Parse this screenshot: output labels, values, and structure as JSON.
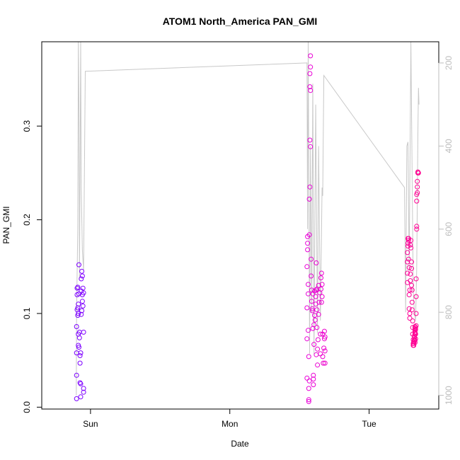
{
  "chart_data": {
    "type": "scatter",
    "title": "ATOM1 North_America PAN_GMI",
    "xlabel": "Date",
    "ylabel": "PAN_GMI",
    "x_tick_labels": [
      "Sun",
      "Mon",
      "Tue"
    ],
    "x_ticks_hours": [
      24,
      48,
      72
    ],
    "x_range_hours": [
      15.6,
      84.0
    ],
    "ylim": [
      -0.002,
      0.39
    ],
    "y_ticks": [
      0.0,
      0.1,
      0.2,
      0.3
    ],
    "y_tick_labels": [
      "0.0",
      "0.1",
      "0.2",
      "0.3"
    ],
    "right_axis": {
      "ticks": [
        200,
        400,
        600,
        800,
        1000
      ],
      "tick_labels": [
        "200",
        "400",
        "600",
        "800",
        "1000"
      ],
      "lim": [
        1033,
        149
      ],
      "color": "#bdbdbd"
    },
    "grid": false,
    "legend": "none",
    "colors": {
      "start": "#7b00ff",
      "middle": "#dc00ff",
      "end": "#ff0090",
      "profile_line": "#c8c8c8"
    },
    "series": [
      {
        "points": [
          [
            21.6,
            0.009
          ],
          [
            21.6,
            0.034
          ],
          [
            21.6,
            0.058
          ],
          [
            21.6,
            0.086
          ],
          [
            21.7,
            0.104
          ],
          [
            21.7,
            0.12
          ],
          [
            21.7,
            0.127
          ],
          [
            21.8,
            0.128
          ],
          [
            21.8,
            0.106
          ],
          [
            21.8,
            0.098
          ],
          [
            21.9,
            0.078
          ],
          [
            21.9,
            0.066
          ],
          [
            21.9,
            0.1
          ],
          [
            21.9,
            0.11
          ],
          [
            22.0,
            0.152
          ],
          [
            22.0,
            0.121
          ],
          [
            22.0,
            0.064
          ],
          [
            22.1,
            0.074
          ],
          [
            22.1,
            0.08
          ],
          [
            22.2,
            0.055
          ],
          [
            22.2,
            0.026
          ],
          [
            22.2,
            0.047
          ],
          [
            22.3,
            0.011
          ],
          [
            22.3,
            0.058
          ],
          [
            22.3,
            0.025
          ],
          [
            22.4,
            0.099
          ],
          [
            22.4,
            0.124
          ],
          [
            22.4,
            0.137
          ],
          [
            22.5,
            0.145
          ],
          [
            22.5,
            0.103
          ],
          [
            22.6,
            0.113
          ],
          [
            22.6,
            0.12
          ],
          [
            22.6,
            0.14
          ],
          [
            22.7,
            0.108
          ],
          [
            22.7,
            0.127
          ],
          [
            22.8,
            0.122
          ],
          [
            22.8,
            0.08
          ],
          [
            22.8,
            0.016
          ],
          [
            22.8,
            0.02
          ]
        ]
      },
      {
        "points": [
          [
            61.3,
            0.031
          ],
          [
            61.3,
            0.073
          ],
          [
            61.3,
            0.106
          ],
          [
            61.3,
            0.15
          ],
          [
            61.4,
            0.175
          ],
          [
            61.4,
            0.182
          ],
          [
            61.4,
            0.168
          ],
          [
            61.5,
            0.131
          ],
          [
            61.5,
            0.121
          ],
          [
            61.5,
            0.082
          ],
          [
            61.6,
            0.054
          ],
          [
            61.6,
            0.006
          ],
          [
            61.6,
            0.008
          ],
          [
            61.6,
            0.02
          ],
          [
            61.7,
            0.028
          ],
          [
            61.7,
            0.184
          ],
          [
            61.7,
            0.222
          ],
          [
            61.8,
            0.235
          ],
          [
            61.8,
            0.285
          ],
          [
            61.8,
            0.342
          ],
          [
            61.8,
            0.356
          ],
          [
            61.9,
            0.375
          ],
          [
            61.9,
            0.363
          ],
          [
            61.9,
            0.338
          ],
          [
            61.9,
            0.278
          ],
          [
            62.0,
            0.158
          ],
          [
            62.0,
            0.14
          ],
          [
            62.1,
            0.125
          ],
          [
            62.1,
            0.113
          ],
          [
            62.2,
            0.105
          ],
          [
            62.2,
            0.103
          ],
          [
            62.3,
            0.121
          ],
          [
            62.3,
            0.084
          ],
          [
            62.4,
            0.03
          ],
          [
            62.4,
            0.034
          ],
          [
            62.4,
            0.024
          ],
          [
            62.5,
            0.067
          ],
          [
            62.5,
            0.088
          ],
          [
            62.6,
            0.124
          ],
          [
            62.6,
            0.098
          ],
          [
            62.7,
            0.093
          ],
          [
            62.8,
            0.11
          ],
          [
            62.8,
            0.118
          ],
          [
            62.9,
            0.125
          ],
          [
            62.9,
            0.056
          ],
          [
            62.9,
            0.154
          ],
          [
            63.0,
            0.126
          ],
          [
            63.0,
            0.104
          ],
          [
            63.0,
            0.085
          ],
          [
            63.1,
            0.062
          ],
          [
            63.1,
            0.045
          ],
          [
            63.2,
            0.072
          ],
          [
            63.3,
            0.099
          ],
          [
            63.3,
            0.13
          ],
          [
            63.4,
            0.112
          ],
          [
            63.5,
            0.122
          ],
          [
            63.6,
            0.057
          ],
          [
            63.6,
            0.078
          ],
          [
            63.7,
            0.126
          ],
          [
            63.7,
            0.138
          ],
          [
            63.8,
            0.143
          ],
          [
            63.8,
            0.112
          ],
          [
            63.9,
            0.131
          ],
          [
            63.9,
            0.118
          ],
          [
            64.0,
            0.078
          ],
          [
            64.0,
            0.054
          ],
          [
            64.1,
            0.047
          ],
          [
            64.2,
            0.063
          ],
          [
            64.3,
            0.073
          ],
          [
            64.3,
            0.081
          ],
          [
            64.4,
            0.075
          ],
          [
            64.4,
            0.06
          ],
          [
            64.4,
            0.047
          ]
        ]
      },
      {
        "points": [
          [
            78.6,
            0.133
          ],
          [
            78.6,
            0.143
          ],
          [
            78.6,
            0.155
          ],
          [
            78.6,
            0.165
          ],
          [
            78.7,
            0.172
          ],
          [
            78.7,
            0.175
          ],
          [
            78.7,
            0.18
          ],
          [
            78.8,
            0.178
          ],
          [
            78.8,
            0.18
          ],
          [
            78.8,
            0.158
          ],
          [
            78.9,
            0.149
          ],
          [
            78.9,
            0.12
          ],
          [
            78.9,
            0.105
          ],
          [
            79.0,
            0.1
          ],
          [
            79.0,
            0.095
          ],
          [
            79.0,
            0.125
          ],
          [
            79.1,
            0.135
          ],
          [
            79.1,
            0.142
          ],
          [
            79.1,
            0.173
          ],
          [
            79.2,
            0.178
          ],
          [
            79.2,
            0.17
          ],
          [
            79.3,
            0.155
          ],
          [
            79.3,
            0.148
          ],
          [
            79.3,
            0.13
          ],
          [
            79.4,
            0.125
          ],
          [
            79.4,
            0.112
          ],
          [
            79.4,
            0.104
          ],
          [
            79.5,
            0.092
          ],
          [
            79.5,
            0.085
          ],
          [
            79.5,
            0.078
          ],
          [
            79.6,
            0.072
          ],
          [
            79.6,
            0.068
          ],
          [
            79.6,
            0.066
          ],
          [
            79.7,
            0.066
          ],
          [
            79.7,
            0.068
          ],
          [
            79.7,
            0.07
          ],
          [
            79.8,
            0.072
          ],
          [
            79.8,
            0.074
          ],
          [
            79.8,
            0.076
          ],
          [
            79.9,
            0.078
          ],
          [
            79.9,
            0.08
          ],
          [
            79.9,
            0.082
          ],
          [
            79.9,
            0.084
          ],
          [
            79.9,
            0.086
          ],
          [
            79.9,
            0.079
          ],
          [
            79.9,
            0.071
          ],
          [
            79.9,
            0.069
          ],
          [
            80.0,
            0.073
          ],
          [
            80.0,
            0.078
          ],
          [
            80.0,
            0.083
          ],
          [
            80.0,
            0.085
          ],
          [
            80.1,
            0.087
          ],
          [
            80.1,
            0.1
          ],
          [
            80.1,
            0.118
          ],
          [
            80.1,
            0.137
          ],
          [
            80.2,
            0.19
          ],
          [
            80.2,
            0.193
          ],
          [
            80.2,
            0.227
          ],
          [
            80.2,
            0.22
          ],
          [
            80.3,
            0.229
          ],
          [
            80.3,
            0.235
          ],
          [
            80.3,
            0.241
          ],
          [
            80.4,
            0.25
          ],
          [
            80.4,
            0.251
          ],
          [
            80.5,
            0.25
          ]
        ]
      }
    ],
    "profile_line": [
      [
        21.55,
        1000
      ],
      [
        21.6,
        800
      ],
      [
        21.8,
        600
      ],
      [
        21.9,
        149
      ],
      [
        22.0,
        300
      ],
      [
        22.1,
        720
      ],
      [
        22.3,
        149
      ],
      [
        22.4,
        500
      ],
      [
        22.6,
        650
      ],
      [
        22.8,
        700
      ],
      [
        23.1,
        220
      ],
      [
        61.3,
        200
      ],
      [
        61.4,
        600
      ],
      [
        61.5,
        149
      ],
      [
        61.6,
        450
      ],
      [
        61.75,
        900
      ],
      [
        61.9,
        400
      ],
      [
        62.1,
        800
      ],
      [
        62.3,
        250
      ],
      [
        62.5,
        900
      ],
      [
        62.8,
        300
      ],
      [
        63.1,
        850
      ],
      [
        63.3,
        400
      ],
      [
        63.6,
        820
      ],
      [
        63.9,
        500
      ],
      [
        64.0,
        520
      ],
      [
        64.2,
        230
      ],
      [
        78.1,
        500
      ],
      [
        78.3,
        800
      ],
      [
        78.5,
        400
      ],
      [
        78.7,
        390
      ],
      [
        78.9,
        700
      ],
      [
        79.2,
        149
      ],
      [
        79.4,
        460
      ],
      [
        79.6,
        750
      ],
      [
        79.8,
        800
      ],
      [
        80.0,
        820
      ],
      [
        80.2,
        700
      ],
      [
        80.4,
        370
      ],
      [
        80.5,
        260
      ],
      [
        80.6,
        300
      ]
    ]
  }
}
